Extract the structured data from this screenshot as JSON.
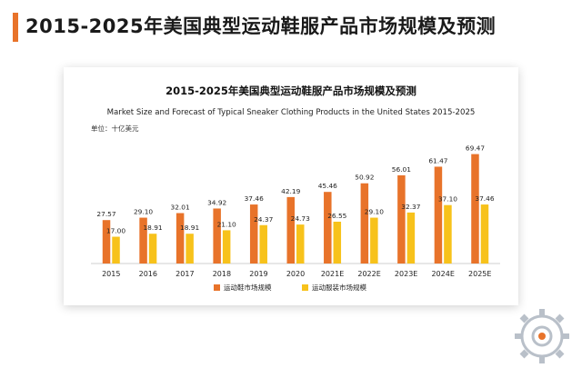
{
  "page": {
    "title": "2015-2025年美国典型运动鞋服产品市场规模及预测"
  },
  "chart_data": {
    "type": "bar",
    "title": "2015-2025年美国典型运动鞋服产品市场规模及预测",
    "subtitle": "Market Size and Forecast of Typical Sneaker Clothing Products in the United States 2015-2025",
    "unit_label": "单位：十亿美元",
    "categories": [
      "2015",
      "2016",
      "2017",
      "2018",
      "2019",
      "2020",
      "2021E",
      "2022E",
      "2023E",
      "2024E",
      "2025E"
    ],
    "series": [
      {
        "name": "运动鞋市场规模",
        "color": "#e8732a",
        "values": [
          27.57,
          29.1,
          32.01,
          34.92,
          37.46,
          42.19,
          45.46,
          50.92,
          56.01,
          61.47,
          69.47
        ]
      },
      {
        "name": "运动服装市场规模",
        "color": "#f7c21b",
        "values": [
          17.0,
          18.91,
          18.91,
          21.1,
          24.37,
          24.73,
          26.55,
          29.1,
          32.37,
          37.1,
          37.46
        ]
      }
    ],
    "data_labels": [
      [
        "27.57",
        "29.10",
        "32.01",
        "34.92",
        "37.46",
        "42.19",
        "45.46",
        "50.92",
        "56.01",
        "61.47",
        "69.47"
      ],
      [
        "17.00",
        "18.91",
        "18.91",
        "21.10",
        "24.37",
        "24.73",
        "26.55",
        "29.10",
        "32.37",
        "37.10",
        "37.46"
      ]
    ],
    "ylim": [
      0,
      75
    ],
    "grid": false,
    "legend_position": "bottom"
  }
}
